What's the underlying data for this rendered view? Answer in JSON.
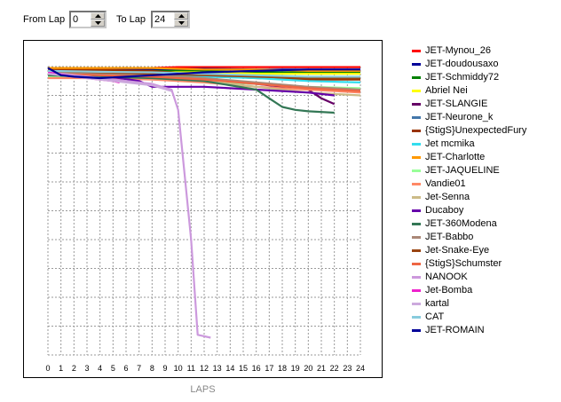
{
  "controls": {
    "from_label": "From Lap",
    "from_value": "0",
    "to_label": "To Lap",
    "to_value": "24"
  },
  "chart_data": {
    "type": "line",
    "title": "",
    "xlabel": "LAPS",
    "ylabel": "",
    "xlim": [
      0,
      24
    ],
    "x_ticks": [
      "0",
      "1",
      "2",
      "3",
      "4",
      "5",
      "6",
      "7",
      "8",
      "9",
      "10",
      "11",
      "12",
      "13",
      "14",
      "15",
      "16",
      "17",
      "18",
      "19",
      "20",
      "21",
      "22",
      "23",
      "24"
    ],
    "ylim": [
      0,
      10
    ],
    "grid": true,
    "legend_position": "right",
    "series": [
      {
        "name": "JET-Mynou_26",
        "color": "#ff0000",
        "x": [
          0,
          4,
          8,
          10,
          12,
          16,
          20,
          24
        ],
        "y": [
          0.15,
          0.1,
          0.05,
          0.02,
          0.02,
          0.02,
          0.02,
          0.02
        ]
      },
      {
        "name": "JET-doudousaxo",
        "color": "#000099",
        "x": [
          0,
          4,
          8,
          12,
          16,
          20,
          24
        ],
        "y": [
          0.12,
          0.12,
          0.1,
          0.08,
          0.1,
          0.1,
          0.1
        ]
      },
      {
        "name": "JET-Schmiddy72",
        "color": "#008000",
        "x": [
          0,
          4,
          8,
          12,
          16,
          20,
          24
        ],
        "y": [
          0.2,
          0.18,
          0.15,
          0.15,
          0.2,
          0.2,
          0.2
        ]
      },
      {
        "name": "Abriel Nei",
        "color": "#ffff00",
        "x": [
          0,
          4,
          8,
          12,
          16,
          20,
          24
        ],
        "y": [
          0.25,
          0.22,
          0.2,
          0.2,
          0.25,
          0.25,
          0.25
        ]
      },
      {
        "name": "JET-SLANGIE",
        "color": "#660066",
        "x": [
          0,
          4,
          8,
          12,
          16,
          20,
          21,
          22
        ],
        "y": [
          0.3,
          0.35,
          0.4,
          0.5,
          0.6,
          0.8,
          1.1,
          1.3
        ]
      },
      {
        "name": "JET-Neurone_k",
        "color": "#4477aa",
        "x": [
          0,
          4,
          8,
          12,
          16,
          20,
          24
        ],
        "y": [
          0.3,
          0.3,
          0.3,
          0.32,
          0.35,
          0.4,
          0.4
        ]
      },
      {
        "name": "{StigS}UnexpectedFury",
        "color": "#993300",
        "x": [
          0,
          4,
          8,
          12,
          16,
          20,
          24
        ],
        "y": [
          0.1,
          0.12,
          0.15,
          0.3,
          0.4,
          0.45,
          0.45
        ]
      },
      {
        "name": "Jet mcmika",
        "color": "#33ddee",
        "x": [
          0,
          4,
          8,
          12,
          16,
          20,
          24
        ],
        "y": [
          0.2,
          0.25,
          0.3,
          0.35,
          0.4,
          0.5,
          0.55
        ]
      },
      {
        "name": "JET-Charlotte",
        "color": "#ff9900",
        "x": [
          0,
          4,
          8,
          12,
          16,
          20,
          24
        ],
        "y": [
          0.05,
          0.05,
          0.05,
          0.1,
          0.1,
          0.15,
          0.15
        ]
      },
      {
        "name": "JET-JAQUELINE",
        "color": "#99ff99",
        "x": [
          0,
          4,
          8,
          12,
          16,
          20,
          24
        ],
        "y": [
          0.35,
          0.35,
          0.4,
          0.5,
          0.6,
          0.7,
          0.75
        ]
      },
      {
        "name": "Vandie01",
        "color": "#ff8866",
        "x": [
          0,
          4,
          8,
          12,
          16,
          20,
          24
        ],
        "y": [
          0.4,
          0.4,
          0.45,
          0.55,
          0.7,
          0.8,
          0.9
        ]
      },
      {
        "name": "Jet-Senna",
        "color": "#ccbb88",
        "x": [
          0,
          4,
          8,
          12,
          16,
          20,
          24
        ],
        "y": [
          0.3,
          0.35,
          0.4,
          0.5,
          0.7,
          0.9,
          1.0
        ]
      },
      {
        "name": "Ducaboy",
        "color": "#6600aa",
        "x": [
          0,
          4,
          7,
          8,
          12,
          16,
          20,
          22
        ],
        "y": [
          0.2,
          0.3,
          0.5,
          0.7,
          0.7,
          0.8,
          0.9,
          1.0
        ]
      },
      {
        "name": "JET-360Modena",
        "color": "#337755",
        "x": [
          0,
          4,
          8,
          12,
          16,
          17,
          18,
          19,
          20,
          22
        ],
        "y": [
          0.3,
          0.35,
          0.4,
          0.5,
          0.8,
          1.1,
          1.4,
          1.5,
          1.55,
          1.6
        ]
      },
      {
        "name": "JET-Babbo",
        "color": "#aa8877",
        "x": [
          0,
          4,
          8,
          12,
          16,
          20,
          24
        ],
        "y": [
          0.2,
          0.25,
          0.3,
          0.4,
          0.55,
          0.7,
          0.8
        ]
      },
      {
        "name": "Jet-Snake-Eye",
        "color": "#994411",
        "x": [
          0,
          4,
          8,
          12,
          16,
          20,
          24
        ],
        "y": [
          0.15,
          0.2,
          0.25,
          0.3,
          0.35,
          0.4,
          0.4
        ]
      },
      {
        "name": "{StigS}Schumster",
        "color": "#ee6644",
        "x": [
          0,
          4,
          8,
          12,
          16,
          20,
          24
        ],
        "y": [
          0.25,
          0.3,
          0.35,
          0.45,
          0.6,
          0.75,
          0.85
        ]
      },
      {
        "name": "NANOOK",
        "color": "#cc99dd",
        "x": [
          0,
          4,
          8,
          9.5,
          10,
          11,
          11.5,
          12.5
        ],
        "y": [
          0.2,
          0.4,
          0.6,
          0.8,
          1.5,
          6.0,
          9.3,
          9.4
        ]
      },
      {
        "name": "Jet-Bomba",
        "color": "#ee22cc",
        "x": [
          0,
          2,
          5,
          5.5
        ],
        "y": [
          0.2,
          0.35,
          0.5,
          0.55
        ]
      },
      {
        "name": "kartal",
        "color": "#ccaadd",
        "x": [
          0,
          4,
          8,
          9.5
        ],
        "y": [
          0.25,
          0.45,
          0.65,
          0.85
        ]
      },
      {
        "name": "CAT",
        "color": "#88ccdd",
        "x": [
          0,
          4,
          8,
          12,
          16,
          20,
          24
        ],
        "y": [
          0.15,
          0.18,
          0.2,
          0.25,
          0.3,
          0.35,
          0.35
        ]
      },
      {
        "name": "JET-ROMAIN",
        "color": "#000099",
        "x": [
          0,
          1,
          2,
          4,
          8,
          12,
          16,
          20,
          24
        ],
        "y": [
          0.05,
          0.3,
          0.35,
          0.4,
          0.3,
          0.2,
          0.15,
          0.1,
          0.1
        ]
      }
    ]
  }
}
